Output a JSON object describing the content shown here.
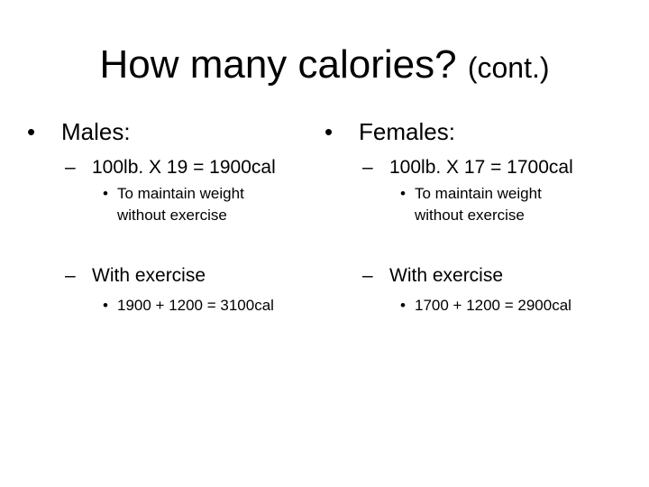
{
  "slide": {
    "title": "How many calories?",
    "title_suffix": "(cont.)"
  },
  "columns": [
    {
      "heading": "Males:",
      "formula": "100lb. X 19 = 1900cal",
      "formula_note": "To maintain weight\nwithout exercise",
      "exercise_label": "With exercise",
      "exercise_calc": "1900 + 1200 = 3100cal"
    },
    {
      "heading": "Females:",
      "formula": "100lb. X 17 = 1700cal",
      "formula_note": "To maintain weight\nwithout exercise",
      "exercise_label": "With exercise",
      "exercise_calc": "1700 + 1200 = 2900cal"
    }
  ],
  "glyphs": {
    "bullet": "•",
    "dash": "–"
  }
}
